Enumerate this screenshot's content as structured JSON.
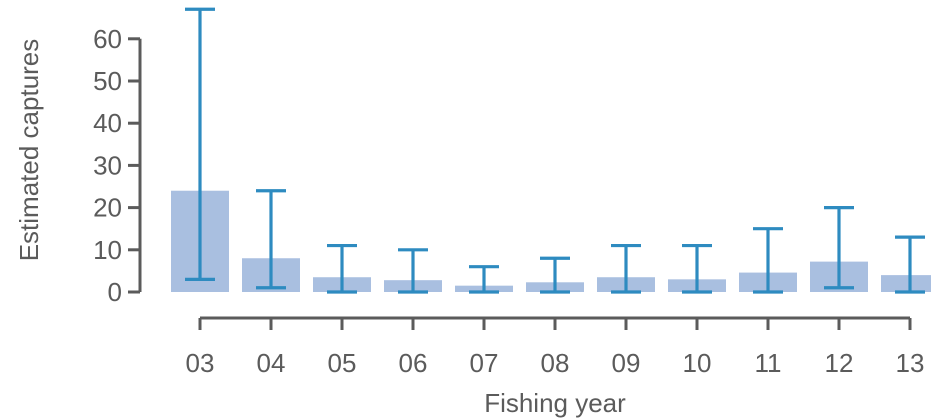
{
  "chart_data": {
    "type": "bar",
    "title": "",
    "xlabel": "Fishing year",
    "ylabel": "Estimated captures",
    "categories": [
      "03",
      "04",
      "05",
      "06",
      "07",
      "08",
      "09",
      "10",
      "11",
      "12",
      "13"
    ],
    "yticks": [
      0,
      10,
      20,
      30,
      40,
      50,
      60
    ],
    "ylim": [
      0,
      67
    ],
    "series": [
      {
        "values": [
          24,
          8,
          3.5,
          2.8,
          1.5,
          2.3,
          3.5,
          3,
          4.6,
          7.2,
          4
        ],
        "lower": [
          3,
          1,
          0,
          0,
          0,
          0,
          0,
          0,
          0,
          1,
          0
        ],
        "upper": [
          67,
          24,
          11,
          10,
          6,
          8,
          11,
          11,
          15,
          20,
          13
        ]
      }
    ],
    "grid": false,
    "legend": "none",
    "colors": {
      "bar": "#a9bfe0",
      "error": "#2e8bc0",
      "axis": "#5b5b5b"
    }
  }
}
